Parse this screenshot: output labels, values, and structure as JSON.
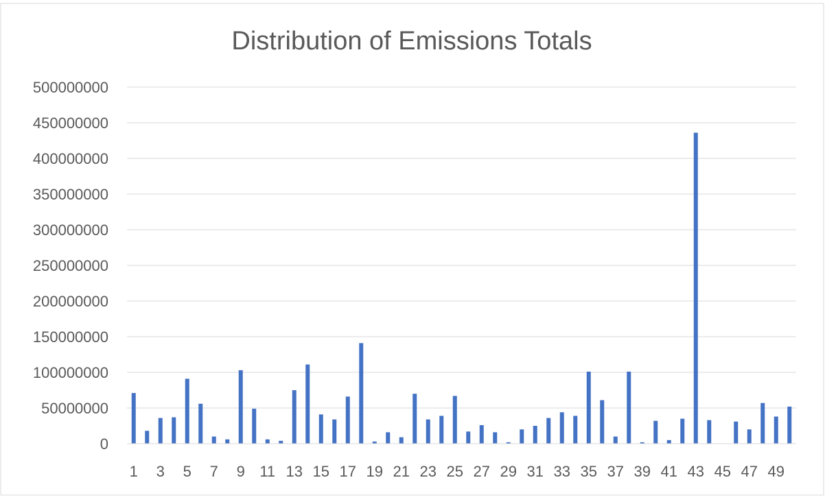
{
  "chart_data": {
    "type": "bar",
    "title": "Distribution of Emissions Totals",
    "xlabel": "",
    "ylabel": "",
    "ylim": [
      0,
      500000000
    ],
    "y_ticks": [
      "0",
      "50000000",
      "100000000",
      "150000000",
      "200000000",
      "250000000",
      "300000000",
      "350000000",
      "400000000",
      "450000000",
      "500000000"
    ],
    "x_tick_labels": [
      "1",
      "3",
      "5",
      "7",
      "9",
      "11",
      "13",
      "15",
      "17",
      "19",
      "21",
      "23",
      "25",
      "27",
      "29",
      "31",
      "33",
      "35",
      "37",
      "39",
      "41",
      "43",
      "45",
      "47",
      "49"
    ],
    "grid": "horizontal",
    "legend": "none",
    "bar_color": "#4472C4",
    "categories": [
      1,
      2,
      3,
      4,
      5,
      6,
      7,
      8,
      9,
      10,
      11,
      12,
      13,
      14,
      15,
      16,
      17,
      18,
      19,
      20,
      21,
      22,
      23,
      24,
      25,
      26,
      27,
      28,
      29,
      30,
      31,
      32,
      33,
      34,
      35,
      36,
      37,
      38,
      39,
      40,
      41,
      42,
      43,
      44,
      45,
      46,
      47,
      48,
      49,
      50
    ],
    "values": [
      71000000,
      18000000,
      36000000,
      37000000,
      91000000,
      56000000,
      10000000,
      6000000,
      103000000,
      49000000,
      6000000,
      4000000,
      75000000,
      111000000,
      41000000,
      34000000,
      66000000,
      141000000,
      3000000,
      16000000,
      9000000,
      70000000,
      34000000,
      39000000,
      67000000,
      17000000,
      26000000,
      16000000,
      2000000,
      20000000,
      25000000,
      36000000,
      44000000,
      39000000,
      101000000,
      61000000,
      10000000,
      101000000,
      2000000,
      32000000,
      5000000,
      35000000,
      436000000,
      33000000,
      0,
      31000000,
      20000000,
      57000000,
      38000000,
      52000000
    ]
  }
}
